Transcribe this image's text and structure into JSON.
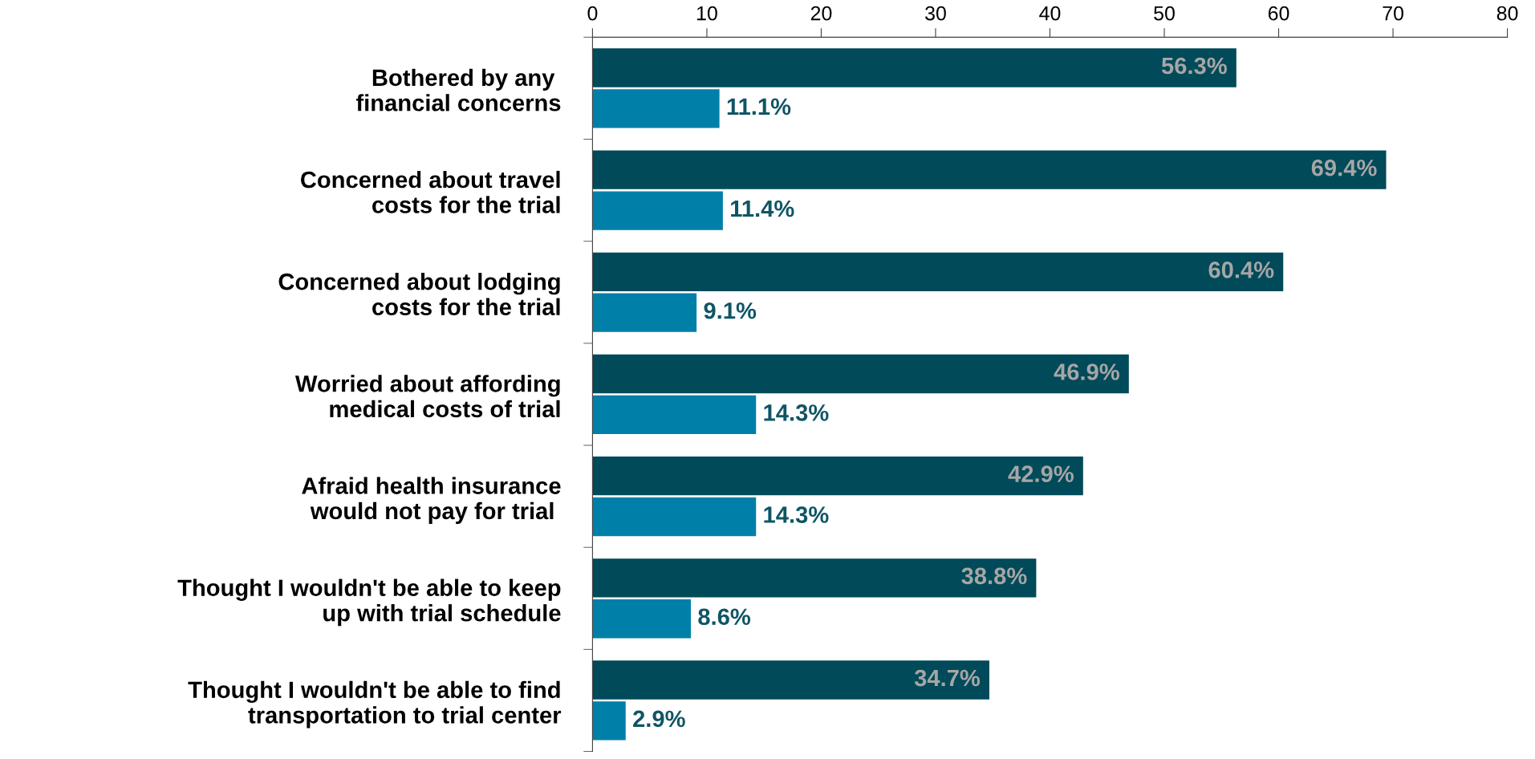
{
  "chart_data": {
    "type": "bar",
    "orientation": "horizontal",
    "categories": [
      "Bothered by any \nfinancial concerns",
      "Concerned about travel\ncosts for the trial",
      "Concerned about lodging\ncosts for the trial",
      "Worried about affording\nmedical costs of trial",
      "Afraid health insurance\nwould not pay for trial ",
      "Thought I wouldn't be able to keep\nup with trial schedule",
      "Thought I wouldn't be able to find\ntransportation to trial center"
    ],
    "series": [
      {
        "color": "#004a59",
        "values": [
          56.3,
          69.4,
          60.4,
          46.9,
          42.9,
          38.8,
          34.7
        ],
        "value_labels": [
          "56.3%",
          "69.4%",
          "60.4%",
          "46.9%",
          "42.9%",
          "38.8%",
          "34.7%"
        ]
      },
      {
        "color": "#0080a8",
        "values": [
          11.1,
          11.4,
          9.1,
          14.3,
          14.3,
          8.6,
          2.9
        ],
        "value_labels": [
          "11.1%",
          "11.4%",
          "9.1%",
          "14.3%",
          "14.3%",
          "8.6%",
          "2.9%"
        ]
      }
    ],
    "xlim": [
      0,
      80
    ],
    "xticks": [
      0,
      10,
      20,
      30,
      40,
      50,
      60,
      70,
      80
    ],
    "grid": false,
    "legend": false
  }
}
